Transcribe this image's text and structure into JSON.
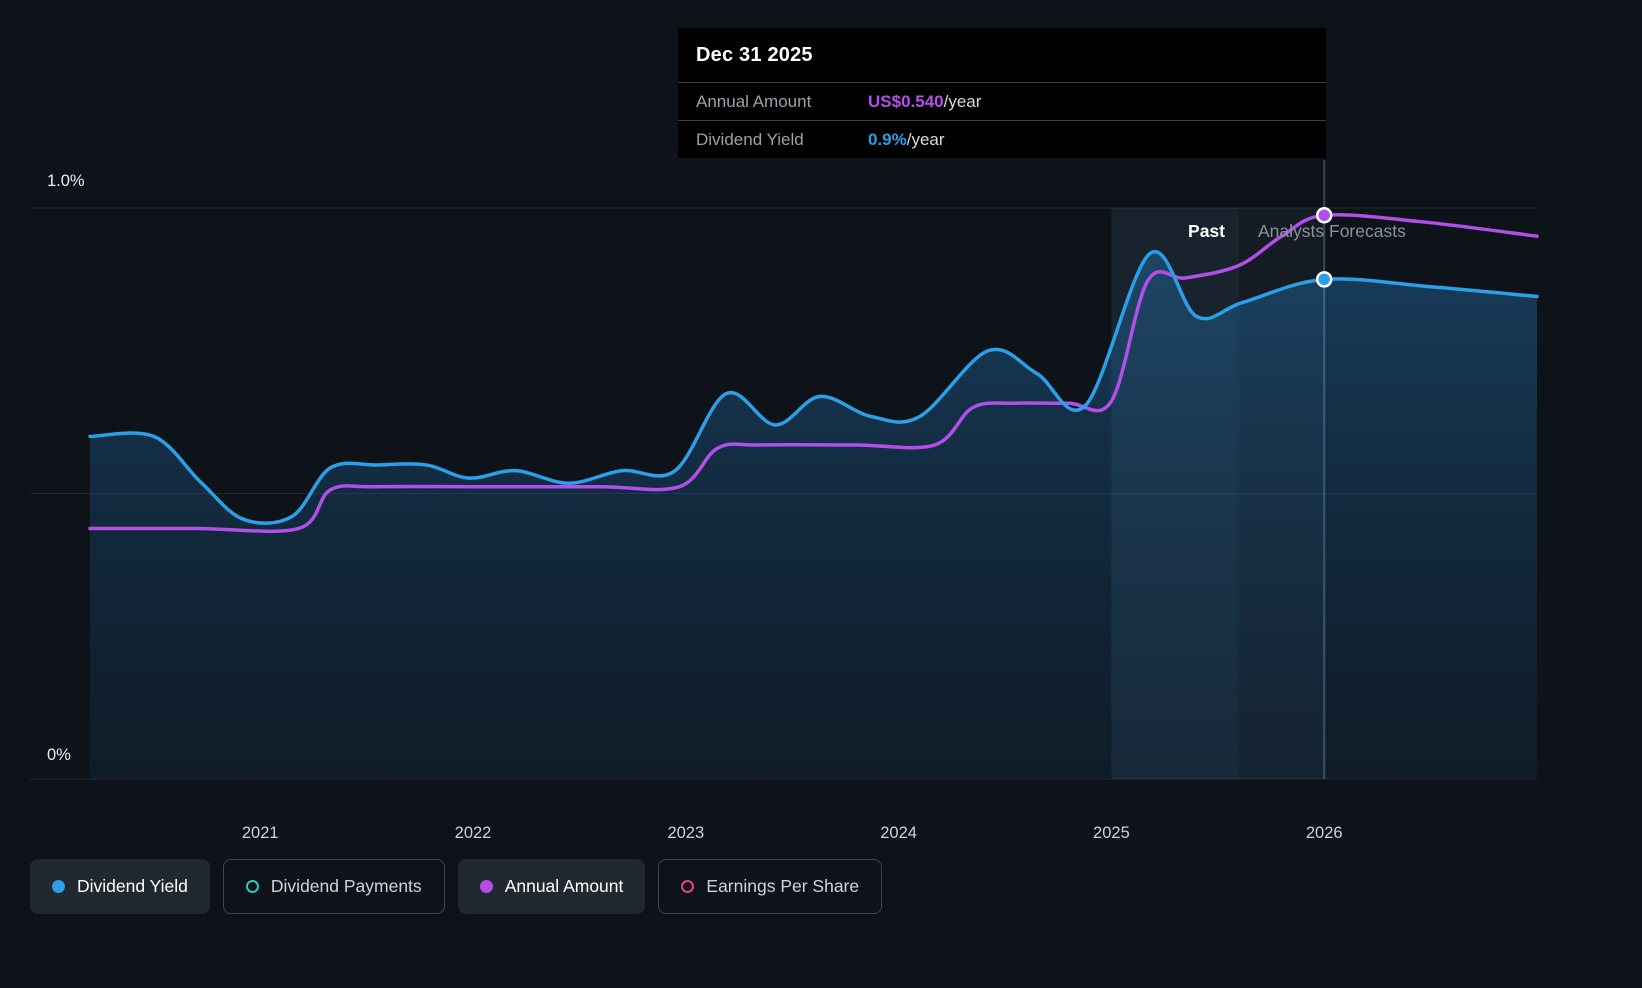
{
  "tooltip": {
    "date": "Dec 31 2025",
    "rows": [
      {
        "label": "Annual Amount",
        "value": "US$0.540",
        "suffix": "/year",
        "color": "#b44fe8"
      },
      {
        "label": "Dividend Yield",
        "value": "0.9%",
        "suffix": "/year",
        "color": "#2b9fe8"
      }
    ]
  },
  "axis": {
    "y_top_label": "1.0%",
    "y_bottom_label": "0%"
  },
  "annotations": {
    "past": "Past",
    "forecast": "Analysts Forecasts"
  },
  "legend": [
    {
      "label": "Dividend Yield",
      "color": "#2b9fe8",
      "filled": true
    },
    {
      "label": "Dividend Payments",
      "color": "#2ec7b9",
      "filled": false
    },
    {
      "label": "Annual Amount",
      "color": "#b14fe8",
      "filled": true
    },
    {
      "label": "Earnings Per Share",
      "color": "#e0487f",
      "filled": false
    }
  ],
  "chart_data": {
    "type": "line",
    "title": "Dividend history and forecast",
    "xlim": [
      2020.2,
      2027.0
    ],
    "x_ticks": [
      2021,
      2022,
      2023,
      2024,
      2025,
      2026
    ],
    "ylim_percent": [
      0,
      1.0
    ],
    "y_gridlines_percent": [
      0,
      0.5,
      1.0
    ],
    "grid": true,
    "legend_position": "bottom",
    "highlight_band": [
      2025.0,
      2025.6
    ],
    "forecast_start": 2025.6,
    "marker_x": 2026.0,
    "markers": [
      {
        "series": "Annual Amount",
        "x": 2026.0,
        "y": 0.54
      },
      {
        "series": "Dividend Yield",
        "x": 2026.0,
        "y": 0.875
      }
    ],
    "series": [
      {
        "name": "Dividend Yield",
        "unit": "%",
        "color": "#2b9fe8",
        "area_fill": true,
        "ymax_at_top_gridline": 1.0,
        "points": [
          [
            2020.2,
            0.6
          ],
          [
            2020.5,
            0.6
          ],
          [
            2020.72,
            0.52
          ],
          [
            2020.92,
            0.455
          ],
          [
            2021.15,
            0.46
          ],
          [
            2021.33,
            0.545
          ],
          [
            2021.55,
            0.55
          ],
          [
            2021.78,
            0.55
          ],
          [
            2021.98,
            0.527
          ],
          [
            2022.2,
            0.54
          ],
          [
            2022.45,
            0.518
          ],
          [
            2022.7,
            0.54
          ],
          [
            2022.95,
            0.54
          ],
          [
            2023.19,
            0.675
          ],
          [
            2023.42,
            0.62
          ],
          [
            2023.63,
            0.67
          ],
          [
            2023.87,
            0.635
          ],
          [
            2024.1,
            0.635
          ],
          [
            2024.42,
            0.75
          ],
          [
            2024.65,
            0.71
          ],
          [
            2024.88,
            0.655
          ],
          [
            2025.18,
            0.92
          ],
          [
            2025.4,
            0.81
          ],
          [
            2025.62,
            0.835
          ],
          [
            2026.0,
            0.875
          ],
          [
            2026.5,
            0.862
          ],
          [
            2027.0,
            0.845
          ]
        ]
      },
      {
        "name": "Annual Amount",
        "unit": "US$/year",
        "color": "#b14fe8",
        "area_fill": false,
        "ymax_at_top_gridline": 0.547,
        "points": [
          [
            2020.2,
            0.24
          ],
          [
            2020.7,
            0.24
          ],
          [
            2021.18,
            0.24
          ],
          [
            2021.33,
            0.277
          ],
          [
            2021.55,
            0.28
          ],
          [
            2022.1,
            0.28
          ],
          [
            2022.6,
            0.28
          ],
          [
            2022.97,
            0.28
          ],
          [
            2023.15,
            0.317
          ],
          [
            2023.35,
            0.32
          ],
          [
            2023.8,
            0.32
          ],
          [
            2024.17,
            0.32
          ],
          [
            2024.35,
            0.356
          ],
          [
            2024.55,
            0.36
          ],
          [
            2024.8,
            0.36
          ],
          [
            2025.0,
            0.362
          ],
          [
            2025.17,
            0.477
          ],
          [
            2025.35,
            0.48
          ],
          [
            2025.6,
            0.492
          ],
          [
            2025.8,
            0.52
          ],
          [
            2026.0,
            0.54
          ],
          [
            2026.45,
            0.534
          ],
          [
            2027.0,
            0.52
          ]
        ]
      }
    ]
  }
}
